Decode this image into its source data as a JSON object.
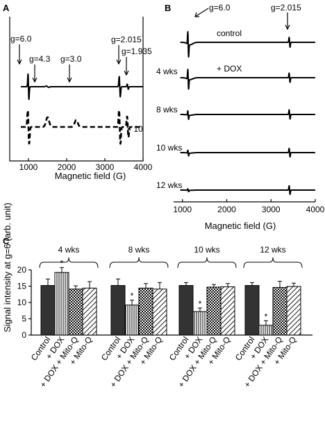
{
  "panels": {
    "a": {
      "letter": "A"
    },
    "b": {
      "letter": "B"
    },
    "c": {
      "letter": "C"
    }
  },
  "chart_data": [
    {
      "id": "A",
      "type": "line",
      "xlabel": "Magnetic field (G)",
      "xlim": [
        800,
        4000
      ],
      "xticks": [
        1000,
        2000,
        3000,
        4000
      ],
      "annotations": [
        {
          "text": "g=6.0",
          "x": 1000
        },
        {
          "text": "g=4.3",
          "x": 1500
        },
        {
          "text": "g=3.0",
          "x": 2250
        },
        {
          "text": "g=2.015",
          "x": 3390
        },
        {
          "text": "g=1.935",
          "x": 3600
        }
      ],
      "series": [
        {
          "style": "solid"
        },
        {
          "style": "dashed",
          "scale_label": "× 10"
        }
      ]
    },
    {
      "id": "B",
      "type": "line",
      "xlabel": "Magnetic field (G)",
      "xlim": [
        800,
        4000
      ],
      "xticks": [
        1000,
        2000,
        3000,
        4000
      ],
      "annotations": [
        {
          "text": "g=6.0",
          "x": 1140
        },
        {
          "text": "g=2.015",
          "x": 3420
        }
      ],
      "series": [
        {
          "name": "control",
          "peak_x": 1130,
          "amp_g6": 36,
          "amp_g2": 14
        },
        {
          "name": "+ DOX",
          "row_label": "4 wks",
          "peak_x": 1130,
          "amp_g6": 28,
          "amp_g2": 13
        },
        {
          "row_label": "8 wks",
          "peak_x": 1130,
          "amp_g6": 12,
          "amp_g2": 13
        },
        {
          "row_label": "10 wks",
          "peak_x": 1130,
          "amp_g6": 8,
          "amp_g2": 12
        },
        {
          "row_label": "12 wks",
          "peak_x": 1130,
          "amp_g6": 4,
          "amp_g2": 12
        }
      ]
    },
    {
      "id": "C",
      "type": "bar",
      "ylabel": "Signal intensity at g=6 (arb. unit)",
      "ylim": [
        0,
        20
      ],
      "yticks": [
        0,
        5,
        10,
        15,
        20
      ],
      "categories": [
        "Control",
        "+ DOX",
        "+ DOX + Mito-Q",
        "+ Mito-Q"
      ],
      "groups": [
        {
          "name": "4 wks",
          "values": [
            15.2,
            19.2,
            14.1,
            14.4
          ],
          "errors": [
            2.0,
            1.5,
            1.0,
            2.0
          ],
          "sig": [
            false,
            true,
            false,
            false
          ]
        },
        {
          "name": "8 wks",
          "values": [
            15.2,
            9.2,
            14.4,
            14.1
          ],
          "errors": [
            2.0,
            1.5,
            1.4,
            2.0
          ],
          "sig": [
            false,
            true,
            false,
            false
          ]
        },
        {
          "name": "10 wks",
          "values": [
            15.2,
            7.2,
            14.7,
            14.8
          ],
          "errors": [
            0.9,
            1.1,
            0.8,
            1.0
          ],
          "sig": [
            false,
            true,
            false,
            false
          ]
        },
        {
          "name": "12 wks",
          "values": [
            15.2,
            3.0,
            14.6,
            14.9
          ],
          "errors": [
            0.9,
            1.4,
            1.9,
            1.0
          ],
          "sig": [
            false,
            true,
            false,
            false
          ]
        }
      ],
      "sig_marker": "*",
      "colors": {
        "Control": "#333333"
      }
    }
  ]
}
